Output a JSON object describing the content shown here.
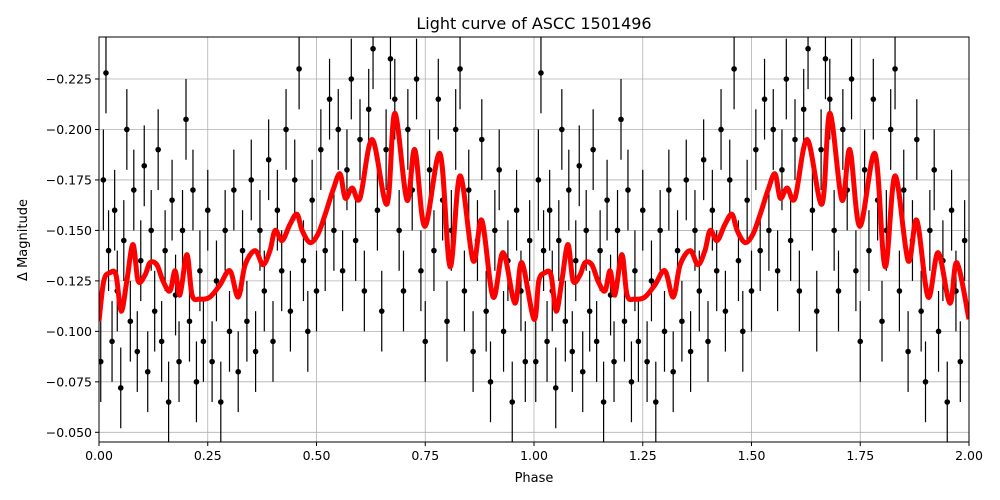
{
  "chart_data": {
    "type": "scatter",
    "title": "Light curve of ASCC 1501496",
    "xlabel": "Phase",
    "ylabel": "Δ Magnitude",
    "xlim": [
      0,
      2
    ],
    "ylim": [
      -0.0452,
      -0.2458
    ],
    "y_inverted": true,
    "grid": true,
    "xticks": [
      "0.00",
      "0.25",
      "0.50",
      "0.75",
      "1.00",
      "1.25",
      "1.50",
      "1.75",
      "2.00"
    ],
    "xtick_values": [
      0,
      0.25,
      0.5,
      0.75,
      1,
      1.25,
      1.5,
      1.75,
      2
    ],
    "yticks": [
      "−0.225",
      "−0.200",
      "−0.175",
      "−0.150",
      "−0.125",
      "−0.100",
      "−0.075",
      "−0.050"
    ],
    "ytick_values": [
      -0.225,
      -0.2,
      -0.175,
      -0.15,
      -0.125,
      -0.1,
      -0.075,
      -0.05
    ],
    "phase_repeat": [
      0,
      1
    ],
    "colors": {
      "observations": "#000000",
      "model": "#ff0000",
      "grid": "#b0b0b0"
    },
    "observations": [
      [
        0.004,
        -0.085,
        0.02
      ],
      [
        0.01,
        -0.175,
        0.025
      ],
      [
        0.016,
        -0.228,
        0.02
      ],
      [
        0.022,
        -0.14,
        0.02
      ],
      [
        0.03,
        -0.095,
        0.02
      ],
      [
        0.036,
        -0.16,
        0.02
      ],
      [
        0.042,
        -0.12,
        0.02
      ],
      [
        0.05,
        -0.072,
        0.02
      ],
      [
        0.057,
        -0.145,
        0.02
      ],
      [
        0.064,
        -0.2,
        0.02
      ],
      [
        0.072,
        -0.105,
        0.02
      ],
      [
        0.08,
        -0.17,
        0.02
      ],
      [
        0.088,
        -0.09,
        0.02
      ],
      [
        0.096,
        -0.135,
        0.02
      ],
      [
        0.104,
        -0.182,
        0.02
      ],
      [
        0.112,
        -0.08,
        0.02
      ],
      [
        0.12,
        -0.15,
        0.02
      ],
      [
        0.128,
        -0.11,
        0.02
      ],
      [
        0.136,
        -0.19,
        0.02
      ],
      [
        0.144,
        -0.095,
        0.02
      ],
      [
        0.152,
        -0.14,
        0.02
      ],
      [
        0.16,
        -0.065,
        0.02
      ],
      [
        0.168,
        -0.165,
        0.02
      ],
      [
        0.176,
        -0.118,
        0.02
      ],
      [
        0.184,
        -0.085,
        0.02
      ],
      [
        0.192,
        -0.15,
        0.02
      ],
      [
        0.2,
        -0.205,
        0.02
      ],
      [
        0.208,
        -0.105,
        0.02
      ],
      [
        0.216,
        -0.17,
        0.02
      ],
      [
        0.224,
        -0.075,
        0.02
      ],
      [
        0.232,
        -0.13,
        0.02
      ],
      [
        0.24,
        -0.095,
        0.02
      ],
      [
        0.25,
        -0.16,
        0.02
      ],
      [
        0.26,
        -0.085,
        0.02
      ],
      [
        0.27,
        -0.125,
        0.02
      ],
      [
        0.28,
        -0.065,
        0.02
      ],
      [
        0.29,
        -0.15,
        0.02
      ],
      [
        0.3,
        -0.1,
        0.02
      ],
      [
        0.31,
        -0.17,
        0.02
      ],
      [
        0.32,
        -0.08,
        0.02
      ],
      [
        0.33,
        -0.14,
        0.02
      ],
      [
        0.34,
        -0.105,
        0.02
      ],
      [
        0.35,
        -0.175,
        0.02
      ],
      [
        0.36,
        -0.09,
        0.02
      ],
      [
        0.37,
        -0.15,
        0.02
      ],
      [
        0.38,
        -0.12,
        0.02
      ],
      [
        0.39,
        -0.185,
        0.02
      ],
      [
        0.4,
        -0.095,
        0.02
      ],
      [
        0.41,
        -0.16,
        0.02
      ],
      [
        0.42,
        -0.13,
        0.02
      ],
      [
        0.43,
        -0.2,
        0.02
      ],
      [
        0.44,
        -0.11,
        0.02
      ],
      [
        0.45,
        -0.175,
        0.02
      ],
      [
        0.46,
        -0.23,
        0.02
      ],
      [
        0.47,
        -0.135,
        0.02
      ],
      [
        0.48,
        -0.1,
        0.02
      ],
      [
        0.49,
        -0.165,
        0.02
      ],
      [
        0.5,
        -0.12,
        0.02
      ],
      [
        0.51,
        -0.19,
        0.02
      ],
      [
        0.52,
        -0.14,
        0.02
      ],
      [
        0.53,
        -0.215,
        0.02
      ],
      [
        0.54,
        -0.15,
        0.02
      ],
      [
        0.55,
        -0.2,
        0.02
      ],
      [
        0.56,
        -0.13,
        0.02
      ],
      [
        0.57,
        -0.18,
        0.02
      ],
      [
        0.58,
        -0.225,
        0.02
      ],
      [
        0.59,
        -0.145,
        0.02
      ],
      [
        0.6,
        -0.195,
        0.02
      ],
      [
        0.61,
        -0.12,
        0.02
      ],
      [
        0.62,
        -0.21,
        0.02
      ],
      [
        0.63,
        -0.24,
        0.02
      ],
      [
        0.64,
        -0.16,
        0.02
      ],
      [
        0.65,
        -0.11,
        0.02
      ],
      [
        0.66,
        -0.19,
        0.02
      ],
      [
        0.67,
        -0.235,
        0.02
      ],
      [
        0.68,
        -0.215,
        0.02
      ],
      [
        0.69,
        -0.15,
        0.02
      ],
      [
        0.7,
        -0.12,
        0.02
      ],
      [
        0.71,
        -0.2,
        0.02
      ],
      [
        0.72,
        -0.17,
        0.02
      ],
      [
        0.73,
        -0.225,
        0.02
      ],
      [
        0.74,
        -0.13,
        0.02
      ],
      [
        0.75,
        -0.095,
        0.02
      ],
      [
        0.76,
        -0.18,
        0.02
      ],
      [
        0.77,
        -0.14,
        0.02
      ],
      [
        0.78,
        -0.215,
        0.02
      ],
      [
        0.79,
        -0.165,
        0.02
      ],
      [
        0.8,
        -0.105,
        0.02
      ],
      [
        0.81,
        -0.15,
        0.02
      ],
      [
        0.82,
        -0.2,
        0.02
      ],
      [
        0.83,
        -0.23,
        0.02
      ],
      [
        0.84,
        -0.12,
        0.02
      ],
      [
        0.85,
        -0.17,
        0.02
      ],
      [
        0.86,
        -0.09,
        0.02
      ],
      [
        0.87,
        -0.145,
        0.02
      ],
      [
        0.88,
        -0.195,
        0.02
      ],
      [
        0.89,
        -0.11,
        0.02
      ],
      [
        0.9,
        -0.075,
        0.02
      ],
      [
        0.91,
        -0.15,
        0.02
      ],
      [
        0.92,
        -0.18,
        0.02
      ],
      [
        0.93,
        -0.1,
        0.02
      ],
      [
        0.94,
        -0.135,
        0.02
      ],
      [
        0.95,
        -0.065,
        0.02
      ],
      [
        0.96,
        -0.16,
        0.02
      ],
      [
        0.97,
        -0.12,
        0.02
      ],
      [
        0.98,
        -0.085,
        0.02
      ],
      [
        0.99,
        -0.145,
        0.02
      ]
    ],
    "model_curve": [
      [
        0.0,
        -0.105
      ],
      [
        0.011,
        -0.125
      ],
      [
        0.025,
        -0.129
      ],
      [
        0.039,
        -0.128
      ],
      [
        0.051,
        -0.11
      ],
      [
        0.064,
        -0.125
      ],
      [
        0.078,
        -0.143
      ],
      [
        0.09,
        -0.125
      ],
      [
        0.106,
        -0.128
      ],
      [
        0.117,
        -0.134
      ],
      [
        0.133,
        -0.133
      ],
      [
        0.147,
        -0.125
      ],
      [
        0.163,
        -0.12
      ],
      [
        0.175,
        -0.13
      ],
      [
        0.186,
        -0.118
      ],
      [
        0.202,
        -0.138
      ],
      [
        0.214,
        -0.118
      ],
      [
        0.232,
        -0.116
      ],
      [
        0.255,
        -0.117
      ],
      [
        0.278,
        -0.123
      ],
      [
        0.301,
        -0.13
      ],
      [
        0.32,
        -0.117
      ],
      [
        0.336,
        -0.133
      ],
      [
        0.359,
        -0.14
      ],
      [
        0.377,
        -0.133
      ],
      [
        0.393,
        -0.14
      ],
      [
        0.405,
        -0.15
      ],
      [
        0.421,
        -0.145
      ],
      [
        0.439,
        -0.153
      ],
      [
        0.455,
        -0.158
      ],
      [
        0.467,
        -0.15
      ],
      [
        0.485,
        -0.144
      ],
      [
        0.503,
        -0.148
      ],
      [
        0.52,
        -0.158
      ],
      [
        0.538,
        -0.17
      ],
      [
        0.554,
        -0.178
      ],
      [
        0.566,
        -0.166
      ],
      [
        0.582,
        -0.171
      ],
      [
        0.6,
        -0.166
      ],
      [
        0.628,
        -0.195
      ],
      [
        0.662,
        -0.163
      ],
      [
        0.68,
        -0.208
      ],
      [
        0.708,
        -0.165
      ],
      [
        0.726,
        -0.19
      ],
      [
        0.749,
        -0.152
      ],
      [
        0.784,
        -0.188
      ],
      [
        0.807,
        -0.132
      ],
      [
        0.83,
        -0.177
      ],
      [
        0.86,
        -0.135
      ],
      [
        0.88,
        -0.155
      ],
      [
        0.906,
        -0.117
      ],
      [
        0.929,
        -0.139
      ],
      [
        0.956,
        -0.114
      ],
      [
        0.972,
        -0.134
      ],
      [
        1.0,
        -0.106
      ]
    ]
  }
}
